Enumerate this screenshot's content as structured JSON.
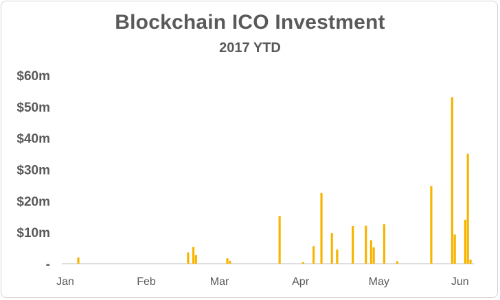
{
  "chart_data": {
    "type": "bar",
    "title": "Blockchain ICO Investment",
    "subtitle": "2017 YTD",
    "xlabel": "",
    "ylabel": "",
    "y_unit": "$ millions",
    "ylim": [
      0,
      60
    ],
    "y_ticks": [
      {
        "value": 0,
        "label": "-"
      },
      {
        "value": 10,
        "label": "$10m"
      },
      {
        "value": 20,
        "label": "$20m"
      },
      {
        "value": 30,
        "label": "$30m"
      },
      {
        "value": 40,
        "label": "$40m"
      },
      {
        "value": 50,
        "label": "$50m"
      },
      {
        "value": 60,
        "label": "$60m"
      }
    ],
    "x_ticks": [
      {
        "date": "2017-01-01",
        "label": "Jan"
      },
      {
        "date": "2017-02-01",
        "label": "Feb"
      },
      {
        "date": "2017-03-01",
        "label": "Mar"
      },
      {
        "date": "2017-04-01",
        "label": "Apr"
      },
      {
        "date": "2017-05-01",
        "label": "May"
      },
      {
        "date": "2017-06-01",
        "label": "Jun"
      }
    ],
    "xlim": [
      "2017-01-01",
      "2017-06-05"
    ],
    "grid": false,
    "legend": "none",
    "bar_color": "#f7b500",
    "points": [
      {
        "date": "2017-01-06",
        "value": 2.0
      },
      {
        "date": "2017-02-17",
        "value": 3.6
      },
      {
        "date": "2017-02-19",
        "value": 5.3
      },
      {
        "date": "2017-02-20",
        "value": 2.8
      },
      {
        "date": "2017-03-04",
        "value": 1.7
      },
      {
        "date": "2017-03-05",
        "value": 0.9
      },
      {
        "date": "2017-03-24",
        "value": 15.2
      },
      {
        "date": "2017-04-02",
        "value": 0.5
      },
      {
        "date": "2017-04-06",
        "value": 5.6
      },
      {
        "date": "2017-04-09",
        "value": 22.5
      },
      {
        "date": "2017-04-13",
        "value": 9.8
      },
      {
        "date": "2017-04-15",
        "value": 4.5
      },
      {
        "date": "2017-04-21",
        "value": 12.0
      },
      {
        "date": "2017-04-26",
        "value": 12.1
      },
      {
        "date": "2017-04-28",
        "value": 7.5
      },
      {
        "date": "2017-04-29",
        "value": 5.2
      },
      {
        "date": "2017-05-03",
        "value": 12.6
      },
      {
        "date": "2017-05-08",
        "value": 0.8
      },
      {
        "date": "2017-05-21",
        "value": 24.7
      },
      {
        "date": "2017-05-29",
        "value": 53.0
      },
      {
        "date": "2017-05-30",
        "value": 9.3
      },
      {
        "date": "2017-06-03",
        "value": 14.0
      },
      {
        "date": "2017-06-04",
        "value": 35.0
      },
      {
        "date": "2017-06-05",
        "value": 1.3
      }
    ]
  }
}
